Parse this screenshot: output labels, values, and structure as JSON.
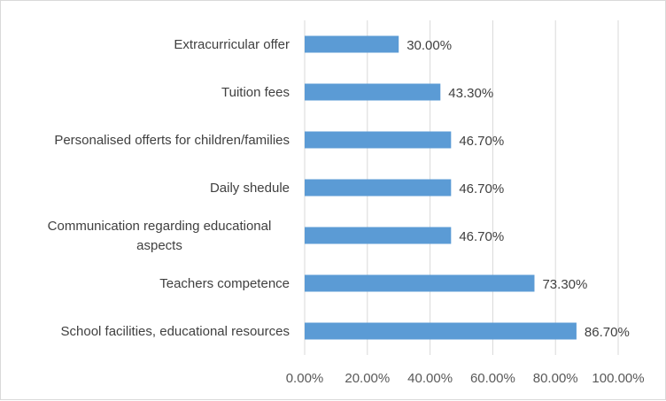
{
  "chart_data": {
    "type": "bar",
    "orientation": "horizontal",
    "categories": [
      "Extracurricular offer",
      "Tuition fees",
      "Personalised offerts for children/families",
      "Daily shedule",
      [
        "Communication regarding educational",
        "aspects"
      ],
      "Teachers competence",
      "School facilities, educational resources"
    ],
    "values": [
      30.0,
      43.3,
      46.7,
      46.7,
      46.7,
      73.3,
      86.7
    ],
    "value_labels": [
      "30.00%",
      "43.30%",
      "46.70%",
      "46.70%",
      "46.70%",
      "73.30%",
      "86.70%"
    ],
    "x_ticks": [
      "0.00%",
      "20.00%",
      "40.00%",
      "60.00%",
      "80.00%",
      "100.00%"
    ],
    "xlim": [
      0,
      100
    ],
    "grid": true,
    "bar_color": "#5b9bd5",
    "title": "",
    "xlabel": "",
    "ylabel": ""
  }
}
